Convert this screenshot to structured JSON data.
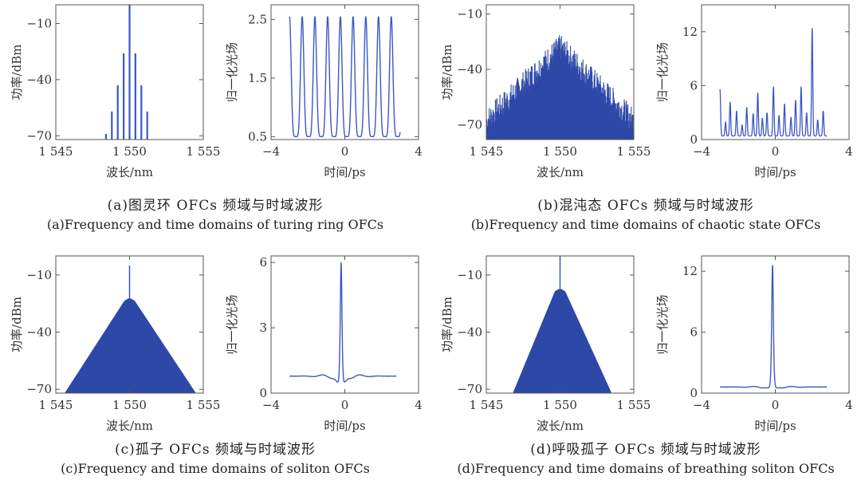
{
  "panels": [
    {
      "caption_cn": "(a)图灵环 OFCs 频域与时域波形",
      "caption_en": "(a)Frequency and time domains of turing ring OFCs",
      "spectrum": {
        "type": "bar",
        "xlabel": "波长/nm",
        "ylabel": "功率/dBm",
        "xlim": [
          1545,
          1555
        ],
        "ylim": [
          -72,
          0
        ],
        "xticks": [
          {
            "v": 1545,
            "label": "1 545"
          },
          {
            "v": 1550,
            "label": "1 550"
          },
          {
            "v": 1555,
            "label": "1 555"
          }
        ],
        "yticks": [
          {
            "v": -10,
            "label": "−10"
          },
          {
            "v": -40,
            "label": "−40"
          },
          {
            "v": -70,
            "label": "−70"
          }
        ],
        "kind": "comb",
        "x": [
          1548.4,
          1548.8,
          1549.2,
          1549.6,
          1550.0,
          1550.4,
          1550.8,
          1551.2
        ],
        "y": [
          -69,
          -57,
          -43,
          -26,
          0,
          -26,
          -43,
          -57
        ]
      },
      "time": {
        "type": "line",
        "xlabel": "时间/ps",
        "ylabel": "归一化光场",
        "xlim": [
          -4,
          4
        ],
        "ylim": [
          0.45,
          2.75
        ],
        "xticks": [
          {
            "v": -4,
            "label": "−4"
          },
          {
            "v": 0,
            "label": "0"
          },
          {
            "v": 4,
            "label": "4"
          }
        ],
        "yticks": [
          {
            "v": 0.5,
            "label": "0.5"
          },
          {
            "v": 1.5,
            "label": "1.5"
          },
          {
            "v": 2.5,
            "label": "2.5"
          }
        ],
        "kind": "periodic",
        "x_range": [
          -3,
          3
        ],
        "period": 0.69,
        "min": 0.5,
        "max": 2.55
      }
    },
    {
      "caption_cn": "(b)混沌态 OFCs 频域与时域波形",
      "caption_en": "(b)Frequency and time domains of chaotic state OFCs",
      "spectrum": {
        "type": "bar",
        "xlabel": "波长/nm",
        "ylabel": "功率/dBm",
        "xlim": [
          1545,
          1555
        ],
        "ylim": [
          -78,
          -5
        ],
        "xticks": [
          {
            "v": 1545,
            "label": "1 545"
          },
          {
            "v": 1550,
            "label": "1 550"
          },
          {
            "v": 1555,
            "label": "1 555"
          }
        ],
        "yticks": [
          {
            "v": -10,
            "label": "−10"
          },
          {
            "v": -40,
            "label": "−40"
          },
          {
            "v": -70,
            "label": "−70"
          }
        ],
        "kind": "chaotic",
        "peak_x": 1550.0,
        "peak_y": -30,
        "edge_y": -70,
        "noise": 14
      },
      "time": {
        "type": "line",
        "xlabel": "时间/ps",
        "ylabel": "归一化光场",
        "xlim": [
          -4,
          4
        ],
        "ylim": [
          0,
          15
        ],
        "xticks": [
          {
            "v": -4,
            "label": "−4"
          },
          {
            "v": 0,
            "label": "0"
          },
          {
            "v": 4,
            "label": "4"
          }
        ],
        "yticks": [
          {
            "v": 0,
            "label": "0"
          },
          {
            "v": 6,
            "label": "6"
          },
          {
            "v": 12,
            "label": "12"
          }
        ],
        "kind": "chaotic",
        "x_range": [
          -3,
          2.8
        ],
        "peaks": [
          [
            -3.0,
            5.2
          ],
          [
            -2.7,
            1.5
          ],
          [
            -2.45,
            3.8
          ],
          [
            -2.1,
            2.8
          ],
          [
            -1.8,
            1.2
          ],
          [
            -1.55,
            3.2
          ],
          [
            -1.2,
            2.5
          ],
          [
            -0.95,
            4.8
          ],
          [
            -0.7,
            2.0
          ],
          [
            -0.45,
            2.6
          ],
          [
            -0.1,
            5.5
          ],
          [
            0.2,
            2.3
          ],
          [
            0.5,
            3.6
          ],
          [
            0.85,
            2.1
          ],
          [
            1.1,
            4.0
          ],
          [
            1.4,
            5.5
          ],
          [
            1.7,
            2.6
          ],
          [
            2.0,
            12.0
          ],
          [
            2.3,
            1.8
          ],
          [
            2.6,
            2.8
          ]
        ]
      }
    },
    {
      "caption_cn": "(c)孤子 OFCs 频域与时域波形",
      "caption_en": "(c)Frequency and time domains of soliton OFCs",
      "spectrum": {
        "type": "bar",
        "xlabel": "波长/nm",
        "ylabel": "功率/dBm",
        "xlim": [
          1545,
          1555
        ],
        "ylim": [
          -72,
          0
        ],
        "xticks": [
          {
            "v": 1545,
            "label": "1 545"
          },
          {
            "v": 1550,
            "label": "1 550"
          },
          {
            "v": 1555,
            "label": "1 555"
          }
        ],
        "yticks": [
          {
            "v": -10,
            "label": "−10"
          },
          {
            "v": -40,
            "label": "−40"
          },
          {
            "v": -70,
            "label": "−70"
          }
        ],
        "kind": "triangle",
        "left_x": 1545.6,
        "right_x": 1554.5,
        "peak_x": 1550.0,
        "peak_y": -22,
        "spike_y": -5,
        "base_y": -72
      },
      "time": {
        "type": "line",
        "xlabel": "时间/ps",
        "ylabel": "归一化光场",
        "xlim": [
          -4,
          4
        ],
        "ylim": [
          0,
          6.3
        ],
        "xticks": [
          {
            "v": -4,
            "label": "−4"
          },
          {
            "v": 0,
            "label": "0"
          },
          {
            "v": 4,
            "label": "4"
          }
        ],
        "yticks": [
          {
            "v": 0,
            "label": "0"
          },
          {
            "v": 3,
            "label": "3"
          },
          {
            "v": 6,
            "label": "6"
          }
        ],
        "kind": "soliton",
        "x_range": [
          -3,
          2.8
        ],
        "center": -0.2,
        "baseline": 0.78,
        "peak": 6.0,
        "dip": 0.3
      }
    },
    {
      "caption_cn": "(d)呼吸孤子 OFCs 频域与时域波形",
      "caption_en": "(d)Frequency and time domains of breathing soliton OFCs",
      "spectrum": {
        "type": "bar",
        "xlabel": "波长/nm",
        "ylabel": "功率/dBm",
        "xlim": [
          1545,
          1555
        ],
        "ylim": [
          -72,
          0
        ],
        "xticks": [
          {
            "v": 1545,
            "label": "1 545"
          },
          {
            "v": 1550,
            "label": "1 550"
          },
          {
            "v": 1555,
            "label": "1 555"
          }
        ],
        "yticks": [
          {
            "v": -10,
            "label": "−10"
          },
          {
            "v": -40,
            "label": "−40"
          },
          {
            "v": -70,
            "label": "−70"
          }
        ],
        "kind": "triangle",
        "left_x": 1546.8,
        "right_x": 1553.5,
        "peak_x": 1550.0,
        "peak_y": -17,
        "spike_y": 0,
        "base_y": -72
      },
      "time": {
        "type": "line",
        "xlabel": "时间/ps",
        "ylabel": "归一化光场",
        "xlim": [
          -4,
          4
        ],
        "ylim": [
          0,
          13.5
        ],
        "xticks": [
          {
            "v": -4,
            "label": "−4"
          },
          {
            "v": 0,
            "label": "0"
          },
          {
            "v": 4,
            "label": "4"
          }
        ],
        "yticks": [
          {
            "v": 0,
            "label": "0"
          },
          {
            "v": 6,
            "label": "6"
          },
          {
            "v": 12,
            "label": "12"
          }
        ],
        "kind": "soliton",
        "x_range": [
          -3,
          2.8
        ],
        "center": -0.15,
        "baseline": 0.6,
        "peak": 12.6,
        "dip": 0.4
      }
    }
  ],
  "colors": {
    "line": "#3a58c4",
    "fill": "#2e48a8",
    "axis": "#555555"
  }
}
